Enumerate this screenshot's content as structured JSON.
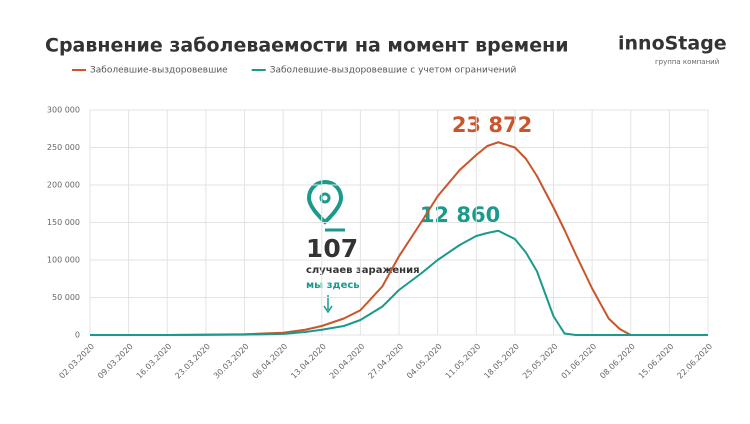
{
  "chart_data": {
    "type": "line",
    "title": "Сравнение заболеваемости на момент времени",
    "logo": {
      "name": "innoStage",
      "subtitle": "группа компаний"
    },
    "x": [
      "02.03.2020",
      "09.03.2020",
      "16.03.2020",
      "23.03.2020",
      "30.03.2020",
      "06.04.2020",
      "10.04.2020",
      "13.04.2020",
      "17.04.2020",
      "20.04.2020",
      "24.04.2020",
      "27.04.2020",
      "01.05.2020",
      "04.05.2020",
      "08.05.2020",
      "11.05.2020",
      "13.05.2020",
      "15.05.2020",
      "18.05.2020",
      "20.05.2020",
      "22.05.2020",
      "25.05.2020",
      "27.05.2020",
      "29.05.2020",
      "01.06.2020",
      "04.06.2020",
      "06.06.2020",
      "08.06.2020",
      "15.06.2020",
      "22.06.2020"
    ],
    "series": [
      {
        "name": "Заболевшие-выздоровевшие",
        "color": "#c9552b",
        "values": [
          0,
          0,
          0,
          500,
          1000,
          3000,
          7000,
          12000,
          22000,
          33000,
          65000,
          105000,
          150000,
          185000,
          220000,
          240000,
          252000,
          257000,
          250000,
          235000,
          212000,
          170000,
          140000,
          108000,
          62000,
          22000,
          8000,
          0,
          0,
          0
        ]
      },
      {
        "name": "Заболевшие-выздоровевшие с учетом ограничений",
        "color": "#1b9a8c",
        "values": [
          0,
          0,
          0,
          200,
          500,
          1500,
          4000,
          7000,
          12000,
          20000,
          38000,
          60000,
          82000,
          100000,
          120000,
          132000,
          136000,
          139000,
          128000,
          110000,
          85000,
          25000,
          2000,
          0,
          0,
          0,
          0,
          0,
          0,
          0
        ]
      }
    ],
    "xlim": [
      "02.03.2020",
      "22.06.2020"
    ],
    "xticks": [
      "02.03.2020",
      "09.03.2020",
      "16.03.2020",
      "23.03.2020",
      "30.03.2020",
      "06.04.2020",
      "13.04.2020",
      "20.04.2020",
      "27.04.2020",
      "04.05.2020",
      "11.05.2020",
      "18.05.2020",
      "25.05.2020",
      "01.06.2020",
      "08.06.2020",
      "15.06.2020",
      "22.06.2020"
    ],
    "ylim": [
      0,
      300000
    ],
    "yticks": [
      0,
      {
        "value": 50000,
        "label": "50 000"
      },
      {
        "value": 100000,
        "label": "100 000"
      },
      {
        "value": 150000,
        "label": "150 000"
      },
      {
        "value": 200000,
        "label": "200 000"
      },
      {
        "value": 250000,
        "label": "250 000"
      },
      {
        "value": 300000,
        "label": "300 000"
      }
    ],
    "grid": true,
    "annotations": {
      "peak1": "23 872",
      "peak2": "12 860",
      "count": "107",
      "caption": "случаев заражения",
      "here": "мы здесь"
    }
  }
}
